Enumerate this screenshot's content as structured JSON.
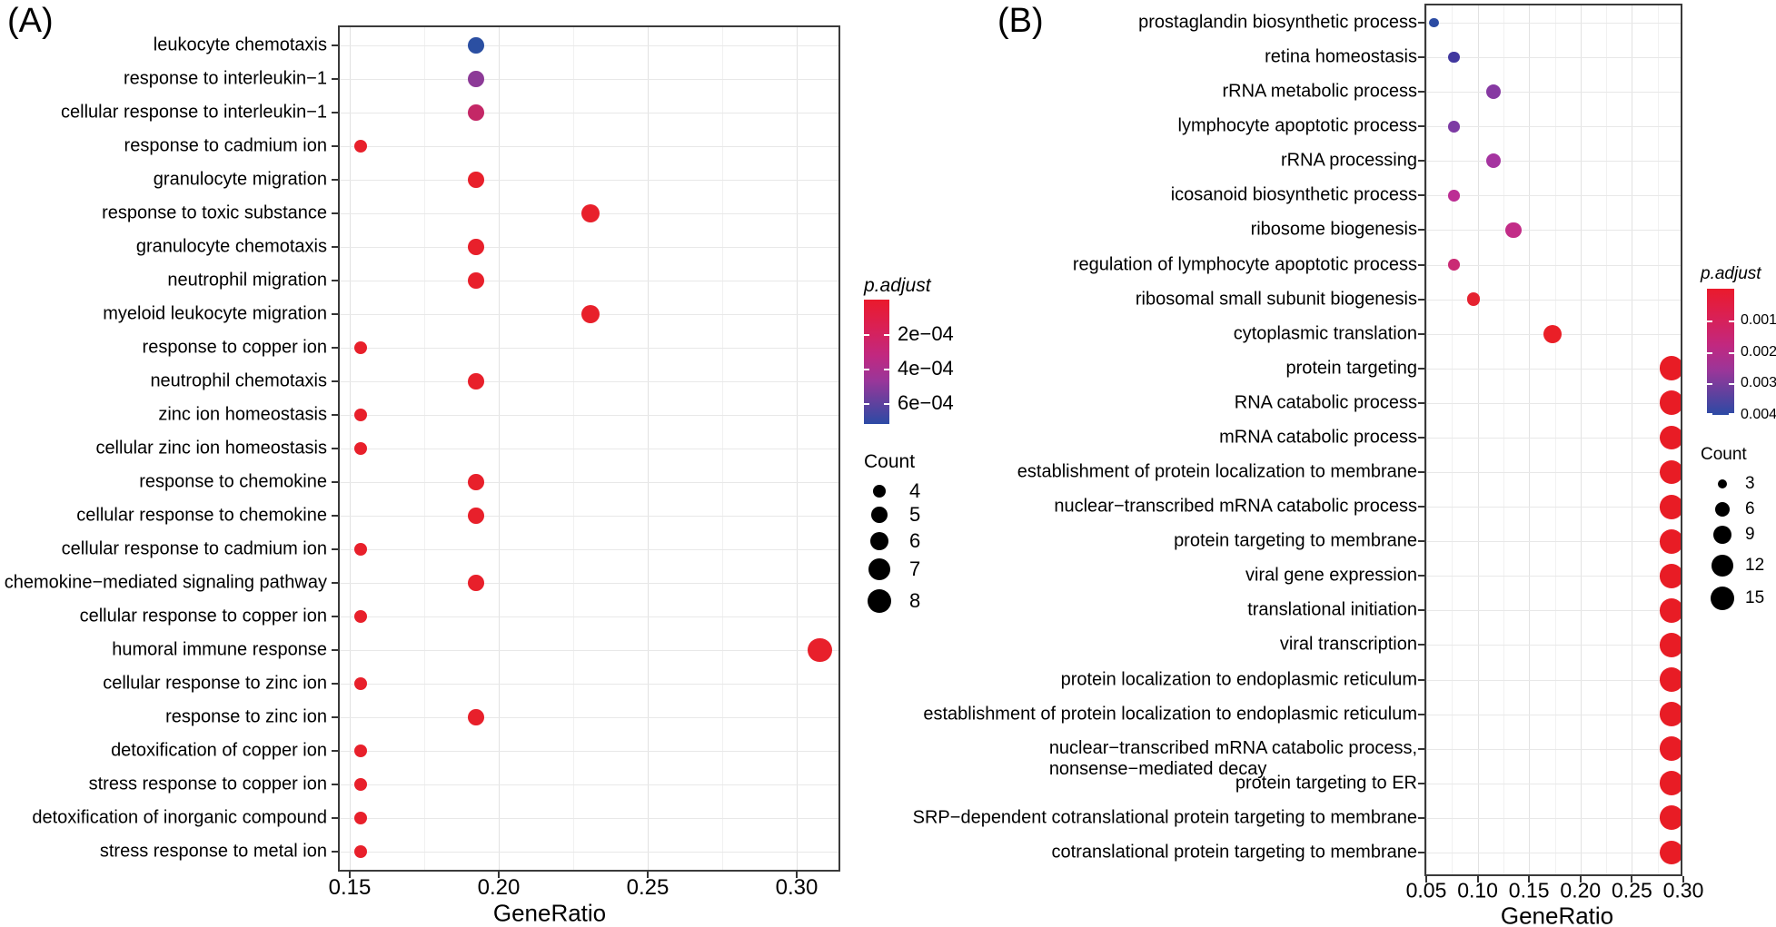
{
  "figure": {
    "panels": [
      {
        "tag": "(A)"
      },
      {
        "tag": "(B)"
      }
    ]
  },
  "chart_data": [
    {
      "type": "scatter",
      "subtype": "go-enrichment-dotplot",
      "panel": "A",
      "xlabel": "GeneRatio",
      "x_tick_labels": [
        "0.15",
        "0.20",
        "0.25",
        "0.30"
      ],
      "x_tick_values": [
        0.15,
        0.2,
        0.25,
        0.3
      ],
      "x_minor_values": [
        0.175,
        0.225,
        0.275
      ],
      "xlim": [
        0.146,
        0.314
      ],
      "grid": true,
      "legend_position": "right",
      "categories": [
        "leukocyte chemotaxis",
        "response to interleukin−1",
        "cellular response to interleukin−1",
        "response to cadmium ion",
        "granulocyte migration",
        "response to toxic substance",
        "granulocyte chemotaxis",
        "neutrophil migration",
        "myeloid leukocyte migration",
        "response to copper ion",
        "neutrophil chemotaxis",
        "zinc ion homeostasis",
        "cellular zinc ion homeostasis",
        "response to chemokine",
        "cellular response to chemokine",
        "cellular response to cadmium ion",
        "chemokine−mediated signaling pathway",
        "cellular response to copper ion",
        "humoral immune response",
        "cellular response to zinc ion",
        "response to zinc ion",
        "detoxification of copper ion",
        "stress response to copper ion",
        "detoxification of inorganic compound",
        "stress response to metal ion"
      ],
      "points": [
        {
          "gene_ratio": 0.1923,
          "count": 5,
          "p_adjust": 0.00065,
          "color": "#2b4fa2"
        },
        {
          "gene_ratio": 0.1923,
          "count": 5,
          "p_adjust": 0.0005,
          "color": "#8c3a97"
        },
        {
          "gene_ratio": 0.1923,
          "count": 5,
          "p_adjust": 0.00025,
          "color": "#c42766"
        },
        {
          "gene_ratio": 0.1538,
          "count": 4,
          "p_adjust": 1e-05,
          "color": "#e8202b"
        },
        {
          "gene_ratio": 0.1923,
          "count": 5,
          "p_adjust": 1e-05,
          "color": "#e8202b"
        },
        {
          "gene_ratio": 0.2308,
          "count": 6,
          "p_adjust": 1e-05,
          "color": "#e8202b"
        },
        {
          "gene_ratio": 0.1923,
          "count": 5,
          "p_adjust": 1e-05,
          "color": "#e8202b"
        },
        {
          "gene_ratio": 0.1923,
          "count": 5,
          "p_adjust": 1e-05,
          "color": "#e8202b"
        },
        {
          "gene_ratio": 0.2308,
          "count": 6,
          "p_adjust": 1e-05,
          "color": "#e8202b"
        },
        {
          "gene_ratio": 0.1538,
          "count": 4,
          "p_adjust": 1e-05,
          "color": "#e8202b"
        },
        {
          "gene_ratio": 0.1923,
          "count": 5,
          "p_adjust": 1e-05,
          "color": "#e8202b"
        },
        {
          "gene_ratio": 0.1538,
          "count": 4,
          "p_adjust": 1e-05,
          "color": "#e8202b"
        },
        {
          "gene_ratio": 0.1538,
          "count": 4,
          "p_adjust": 1e-05,
          "color": "#e8202b"
        },
        {
          "gene_ratio": 0.1923,
          "count": 5,
          "p_adjust": 1e-05,
          "color": "#e8202b"
        },
        {
          "gene_ratio": 0.1923,
          "count": 5,
          "p_adjust": 1e-05,
          "color": "#e8202b"
        },
        {
          "gene_ratio": 0.1538,
          "count": 4,
          "p_adjust": 1e-05,
          "color": "#e8202b"
        },
        {
          "gene_ratio": 0.1923,
          "count": 5,
          "p_adjust": 1e-05,
          "color": "#e8202b"
        },
        {
          "gene_ratio": 0.1538,
          "count": 4,
          "p_adjust": 1e-05,
          "color": "#e8202b"
        },
        {
          "gene_ratio": 0.3077,
          "count": 8,
          "p_adjust": 1e-05,
          "color": "#e8202b"
        },
        {
          "gene_ratio": 0.1538,
          "count": 4,
          "p_adjust": 1e-05,
          "color": "#e8202b"
        },
        {
          "gene_ratio": 0.1923,
          "count": 5,
          "p_adjust": 1e-05,
          "color": "#e8202b"
        },
        {
          "gene_ratio": 0.1538,
          "count": 4,
          "p_adjust": 1e-05,
          "color": "#e8202b"
        },
        {
          "gene_ratio": 0.1538,
          "count": 4,
          "p_adjust": 1e-05,
          "color": "#e8202b"
        },
        {
          "gene_ratio": 0.1538,
          "count": 4,
          "p_adjust": 1e-05,
          "color": "#e8202b"
        },
        {
          "gene_ratio": 0.1538,
          "count": 4,
          "p_adjust": 1e-05,
          "color": "#e8202b"
        }
      ],
      "legend": {
        "colorbar": {
          "title": "p.adjust",
          "tick_labels": [
            "2e−04",
            "4e−04",
            "6e−04"
          ],
          "top_color": "#ea1a2c",
          "bottom_color": "#2c4aa5"
        },
        "size": {
          "title": "Count",
          "values": [
            4,
            5,
            6,
            7,
            8
          ]
        }
      }
    },
    {
      "type": "scatter",
      "subtype": "go-enrichment-dotplot",
      "panel": "B",
      "xlabel": "GeneRatio",
      "x_tick_labels": [
        "0.05",
        "0.10",
        "0.15",
        "0.20",
        "0.25",
        "0.30"
      ],
      "x_tick_values": [
        0.05,
        0.1,
        0.15,
        0.2,
        0.25,
        0.3
      ],
      "x_minor_values": [
        0.075,
        0.125,
        0.175,
        0.225,
        0.275
      ],
      "xlim": [
        0.0498,
        0.299
      ],
      "grid": true,
      "legend_position": "right",
      "categories": [
        "prostaglandin biosynthetic process",
        "retina homeostasis",
        "rRNA metabolic process",
        "lymphocyte apoptotic process",
        "rRNA processing",
        "icosanoid biosynthetic process",
        "ribosome biogenesis",
        "regulation of lymphocyte apoptotic process",
        "ribosomal small subunit biogenesis",
        "cytoplasmic translation",
        "protein targeting",
        "RNA catabolic process",
        "mRNA catabolic process",
        "establishment of protein localization to membrane",
        "nuclear−transcribed mRNA catabolic process",
        "protein targeting to membrane",
        "viral gene expression",
        "translational initiation",
        "viral transcription",
        "protein localization to endoplasmic reticulum",
        "establishment of protein localization to endoplasmic reticulum",
        "nuclear−transcribed mRNA catabolic process,\nnonsense−mediated decay",
        "protein targeting to ER",
        "SRP−dependent cotranslational protein targeting to membrane",
        "cotranslational protein targeting to membrane"
      ],
      "points": [
        {
          "gene_ratio": 0.0577,
          "count": 3,
          "p_adjust": 0.004,
          "color": "#2b4ba3"
        },
        {
          "gene_ratio": 0.0769,
          "count": 4,
          "p_adjust": 0.0036,
          "color": "#41389f"
        },
        {
          "gene_ratio": 0.1154,
          "count": 6,
          "p_adjust": 0.0026,
          "color": "#8639a2"
        },
        {
          "gene_ratio": 0.0769,
          "count": 4,
          "p_adjust": 0.0028,
          "color": "#7d3ba4"
        },
        {
          "gene_ratio": 0.1154,
          "count": 6,
          "p_adjust": 0.0022,
          "color": "#a534a0"
        },
        {
          "gene_ratio": 0.0769,
          "count": 4,
          "p_adjust": 0.0018,
          "color": "#bc2e94"
        },
        {
          "gene_ratio": 0.1346,
          "count": 7,
          "p_adjust": 0.0017,
          "color": "#c22c87"
        },
        {
          "gene_ratio": 0.0769,
          "count": 4,
          "p_adjust": 0.0015,
          "color": "#ca2a74"
        },
        {
          "gene_ratio": 0.0962,
          "count": 5,
          "p_adjust": 0.0006,
          "color": "#e52230"
        },
        {
          "gene_ratio": 0.1731,
          "count": 9,
          "p_adjust": 0.0004,
          "color": "#ea1f27"
        },
        {
          "gene_ratio": 0.2885,
          "count": 15,
          "p_adjust": 0.0001,
          "color": "#e81c25"
        },
        {
          "gene_ratio": 0.2885,
          "count": 15,
          "p_adjust": 0.0001,
          "color": "#e81c25"
        },
        {
          "gene_ratio": 0.2885,
          "count": 15,
          "p_adjust": 0.0001,
          "color": "#e81c25"
        },
        {
          "gene_ratio": 0.2885,
          "count": 15,
          "p_adjust": 0.0001,
          "color": "#e81c25"
        },
        {
          "gene_ratio": 0.2885,
          "count": 15,
          "p_adjust": 0.0001,
          "color": "#e81c25"
        },
        {
          "gene_ratio": 0.2885,
          "count": 15,
          "p_adjust": 0.0001,
          "color": "#e81c25"
        },
        {
          "gene_ratio": 0.2885,
          "count": 15,
          "p_adjust": 0.0001,
          "color": "#e81c25"
        },
        {
          "gene_ratio": 0.2885,
          "count": 15,
          "p_adjust": 0.0001,
          "color": "#e81c25"
        },
        {
          "gene_ratio": 0.2885,
          "count": 15,
          "p_adjust": 0.0001,
          "color": "#e81c25"
        },
        {
          "gene_ratio": 0.2885,
          "count": 15,
          "p_adjust": 0.0001,
          "color": "#e81c25"
        },
        {
          "gene_ratio": 0.2885,
          "count": 15,
          "p_adjust": 0.0001,
          "color": "#e81c25"
        },
        {
          "gene_ratio": 0.2885,
          "count": 15,
          "p_adjust": 0.0001,
          "color": "#e81c25"
        },
        {
          "gene_ratio": 0.2885,
          "count": 15,
          "p_adjust": 0.0001,
          "color": "#e81c25"
        },
        {
          "gene_ratio": 0.2885,
          "count": 15,
          "p_adjust": 0.0001,
          "color": "#e81c25"
        },
        {
          "gene_ratio": 0.2885,
          "count": 15,
          "p_adjust": 0.0001,
          "color": "#e81c25"
        }
      ],
      "legend": {
        "colorbar": {
          "title": "p.adjust",
          "tick_labels": [
            "0.001",
            "0.002",
            "0.003",
            "0.004"
          ],
          "top_color": "#ea1a2c",
          "bottom_color": "#2c4aa5"
        },
        "size": {
          "title": "Count",
          "values": [
            3,
            6,
            9,
            12,
            15
          ]
        }
      }
    }
  ]
}
